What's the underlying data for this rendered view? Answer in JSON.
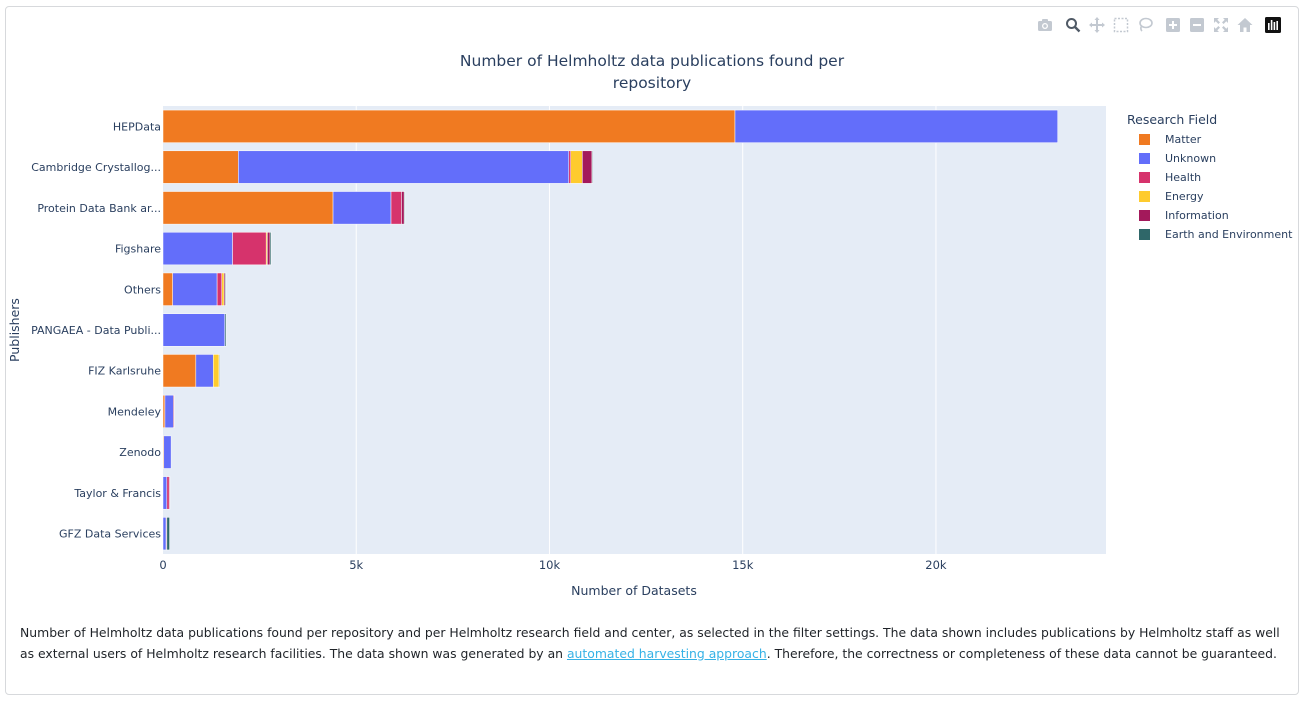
{
  "modebar": {
    "buttons": [
      {
        "name": "camera-icon"
      },
      {
        "name": "zoom-icon"
      },
      {
        "name": "pan-icon"
      },
      {
        "name": "box-select-icon"
      },
      {
        "name": "lasso-select-icon"
      },
      {
        "name": "zoom-in-icon"
      },
      {
        "name": "zoom-out-icon"
      },
      {
        "name": "autoscale-icon"
      },
      {
        "name": "reset-axes-icon"
      },
      {
        "name": "plotly-logo-icon"
      }
    ]
  },
  "chart_data": {
    "type": "bar",
    "orientation": "horizontal",
    "barmode": "stack",
    "title_lines": [
      "Number of Helmholtz data publications found per",
      "repository"
    ],
    "xlabel": "Number of Datasets",
    "ylabel": "Publishers",
    "xlim": [
      0,
      24400
    ],
    "xticks": [
      0,
      5000,
      10000,
      15000,
      20000
    ],
    "xtick_labels": [
      "0",
      "5k",
      "10k",
      "15k",
      "20k"
    ],
    "grid": true,
    "legend_title": "Research Field",
    "legend_position": "right",
    "categories": [
      "HEPData",
      "Cambridge Crystallog...",
      "Protein Data Bank ar...",
      "Figshare",
      "Others",
      "PANGAEA - Data Publi...",
      "FIZ Karlsruhe",
      "Mendeley",
      "Zenodo",
      "Taylor & Francis",
      "GFZ Data Services"
    ],
    "series": [
      {
        "name": "Matter",
        "color": "#f07a21",
        "values": [
          14800,
          1950,
          4400,
          0,
          250,
          0,
          850,
          50,
          20,
          0,
          0
        ]
      },
      {
        "name": "Unknown",
        "color": "#636efa",
        "values": [
          8350,
          8550,
          1500,
          1800,
          1150,
          1600,
          450,
          220,
          190,
          100,
          80
        ]
      },
      {
        "name": "Health",
        "color": "#d6336c",
        "values": [
          0,
          50,
          270,
          870,
          120,
          0,
          0,
          0,
          0,
          60,
          0
        ]
      },
      {
        "name": "Energy",
        "color": "#fecb2e",
        "values": [
          0,
          300,
          0,
          30,
          60,
          0,
          150,
          0,
          0,
          0,
          0
        ]
      },
      {
        "name": "Information",
        "color": "#a3195b",
        "values": [
          0,
          250,
          70,
          70,
          30,
          0,
          0,
          20,
          0,
          20,
          20
        ]
      },
      {
        "name": "Earth and Environment",
        "color": "#2f6769",
        "values": [
          0,
          20,
          20,
          30,
          20,
          30,
          20,
          0,
          0,
          0,
          70
        ]
      }
    ]
  },
  "caption": {
    "text_before": "Number of Helmholtz data publications found per repository and per Helmholtz research field and center, as selected in the filter settings. The data shown includes publications by Helmholtz staff as well as external users of Helmholtz research facilities. The data shown was generated by an ",
    "link_text": "automated harvesting approach",
    "text_after": ". Therefore, the correctness or completeness of these data cannot be guaranteed."
  }
}
